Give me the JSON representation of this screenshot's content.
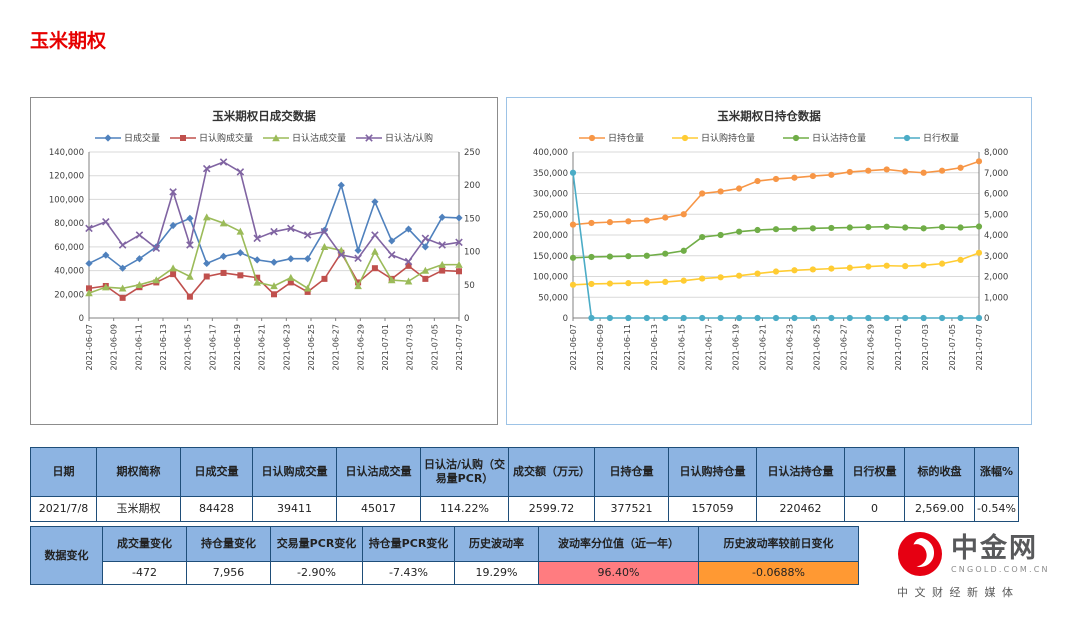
{
  "page": {
    "title": "玉米期权",
    "title_color": "#e60000",
    "accent_blue": "#8db4e2"
  },
  "chart_data": [
    {
      "type": "line",
      "title": "玉米期权日成交数据",
      "legend_position": "top",
      "grid": true,
      "x_labels": [
        "2021-06-07",
        "2021-06-09",
        "2021-06-11",
        "2021-06-13",
        "2021-06-15",
        "2021-06-17",
        "2021-06-19",
        "2021-06-21",
        "2021-06-23",
        "2021-06-25",
        "2021-06-27",
        "2021-06-29",
        "2021-07-01",
        "2021-07-03",
        "2021-07-05",
        "2021-07-07"
      ],
      "left_axis": {
        "min": 0,
        "max": 140000,
        "labels": [
          "0",
          "20,000",
          "40,000",
          "60,000",
          "80,000",
          "100,000",
          "120,000",
          "140,000"
        ]
      },
      "right_axis": {
        "min": 0,
        "max": 250,
        "labels": [
          "0",
          "50",
          "100",
          "150",
          "200",
          "250"
        ]
      },
      "series": [
        {
          "name": "日成交量",
          "color": "#4f81bd",
          "marker": "diamond",
          "axis": "left",
          "values": [
            46000,
            53000,
            42000,
            50000,
            60000,
            78000,
            84000,
            46000,
            52000,
            55000,
            49000,
            47000,
            50000,
            50000,
            74000,
            112000,
            57000,
            98000,
            65000,
            75000,
            60000,
            85000,
            84428
          ]
        },
        {
          "name": "日认购成交量",
          "color": "#c0504d",
          "marker": "square",
          "axis": "left",
          "values": [
            25000,
            27000,
            17000,
            26000,
            30000,
            37000,
            18000,
            35000,
            38000,
            36000,
            34000,
            20000,
            30000,
            22000,
            33000,
            55000,
            30000,
            42000,
            33000,
            44000,
            33000,
            40000,
            39411
          ]
        },
        {
          "name": "日认沽成交量",
          "color": "#9bbb59",
          "marker": "triangle",
          "axis": "left",
          "values": [
            21000,
            26000,
            25000,
            28000,
            32000,
            42000,
            35000,
            85000,
            80000,
            73000,
            30000,
            27000,
            34000,
            25000,
            60000,
            57000,
            27000,
            56000,
            32000,
            31000,
            40000,
            45000,
            45017
          ]
        },
        {
          "name": "日认沽/认购",
          "color": "#8064a2",
          "marker": "x",
          "axis": "right",
          "values": [
            135,
            145,
            110,
            125,
            105,
            190,
            110,
            225,
            235,
            220,
            120,
            130,
            135,
            125,
            130,
            95,
            90,
            125,
            95,
            85,
            120,
            110,
            114
          ]
        }
      ]
    },
    {
      "type": "line",
      "title": "玉米期权日持仓数据",
      "legend_position": "top",
      "grid": true,
      "x_labels": [
        "2021-06-07",
        "2021-06-09",
        "2021-06-11",
        "2021-06-13",
        "2021-06-15",
        "2021-06-17",
        "2021-06-19",
        "2021-06-21",
        "2021-06-23",
        "2021-06-25",
        "2021-06-27",
        "2021-06-29",
        "2021-07-01",
        "2021-07-03",
        "2021-07-05",
        "2021-07-07"
      ],
      "left_axis": {
        "min": 0,
        "max": 400000,
        "labels": [
          "0",
          "50,000",
          "100,000",
          "150,000",
          "200,000",
          "250,000",
          "300,000",
          "350,000",
          "400,000"
        ]
      },
      "right_axis": {
        "min": 0,
        "max": 8000,
        "labels": [
          "0",
          "1,000",
          "2,000",
          "3,000",
          "4,000",
          "5,000",
          "6,000",
          "7,000",
          "8,000"
        ]
      },
      "series": [
        {
          "name": "日持仓量",
          "color": "#f79646",
          "marker": "circle",
          "axis": "left",
          "values": [
            225000,
            229000,
            231000,
            233000,
            235000,
            242000,
            250000,
            300000,
            305000,
            312000,
            330000,
            335000,
            338000,
            342000,
            345000,
            352000,
            355000,
            358000,
            353000,
            350000,
            355000,
            362000,
            377521
          ]
        },
        {
          "name": "日认购持仓量",
          "color": "#ffcc33",
          "marker": "circle",
          "axis": "left",
          "values": [
            80000,
            82000,
            83000,
            84000,
            85000,
            87000,
            90000,
            95000,
            98000,
            102000,
            107000,
            112000,
            115000,
            117000,
            119000,
            121000,
            124000,
            126000,
            125000,
            127000,
            131000,
            140000,
            157059
          ]
        },
        {
          "name": "日认沽持仓量",
          "color": "#70ad47",
          "marker": "circle",
          "axis": "left",
          "values": [
            145000,
            147000,
            148000,
            149000,
            150000,
            155000,
            162000,
            195000,
            200000,
            208000,
            212000,
            214000,
            215000,
            216000,
            217000,
            218000,
            219000,
            220000,
            218000,
            216000,
            219000,
            218000,
            220462
          ]
        },
        {
          "name": "日行权量",
          "color": "#4bacc6",
          "marker": "circle",
          "axis": "right",
          "values": [
            7000,
            0,
            0,
            0,
            0,
            0,
            0,
            0,
            0,
            0,
            0,
            0,
            0,
            0,
            0,
            0,
            0,
            0,
            0,
            0,
            0,
            0,
            0
          ]
        }
      ]
    }
  ],
  "table1": {
    "headers": [
      "日期",
      "期权简称",
      "日成交量",
      "日认购成交量",
      "日认沽成交量",
      "日认沽/认购（交易量PCR）",
      "成交额（万元）",
      "日持仓量",
      "日认购持仓量",
      "日认沽持仓量",
      "日行权量",
      "标的收盘",
      "涨幅%"
    ],
    "row": [
      "2021/7/8",
      "玉米期权",
      "84428",
      "39411",
      "45017",
      "114.22%",
      "2599.72",
      "377521",
      "157059",
      "220462",
      "0",
      "2,569.00",
      "-0.54%"
    ]
  },
  "table2": {
    "label": "数据变化",
    "headers": [
      "成交量变化",
      "持仓量变化",
      "交易量PCR变化",
      "持仓量PCR变化",
      "历史波动率",
      "波动率分位值（近一年）",
      "历史波动率较前日变化"
    ],
    "values": [
      {
        "text": "-472"
      },
      {
        "text": "7,956"
      },
      {
        "text": "-2.90%"
      },
      {
        "text": "-7.43%"
      },
      {
        "text": "19.29%"
      },
      {
        "text": "96.40%",
        "bg": "#ff7c80"
      },
      {
        "text": "-0.0688%",
        "bg": "#ff9933"
      }
    ]
  },
  "logo": {
    "name": "中金网",
    "domain": "CNGOLD.COM.CN",
    "tagline": "中文财经新媒体",
    "accent": "#e60012"
  }
}
